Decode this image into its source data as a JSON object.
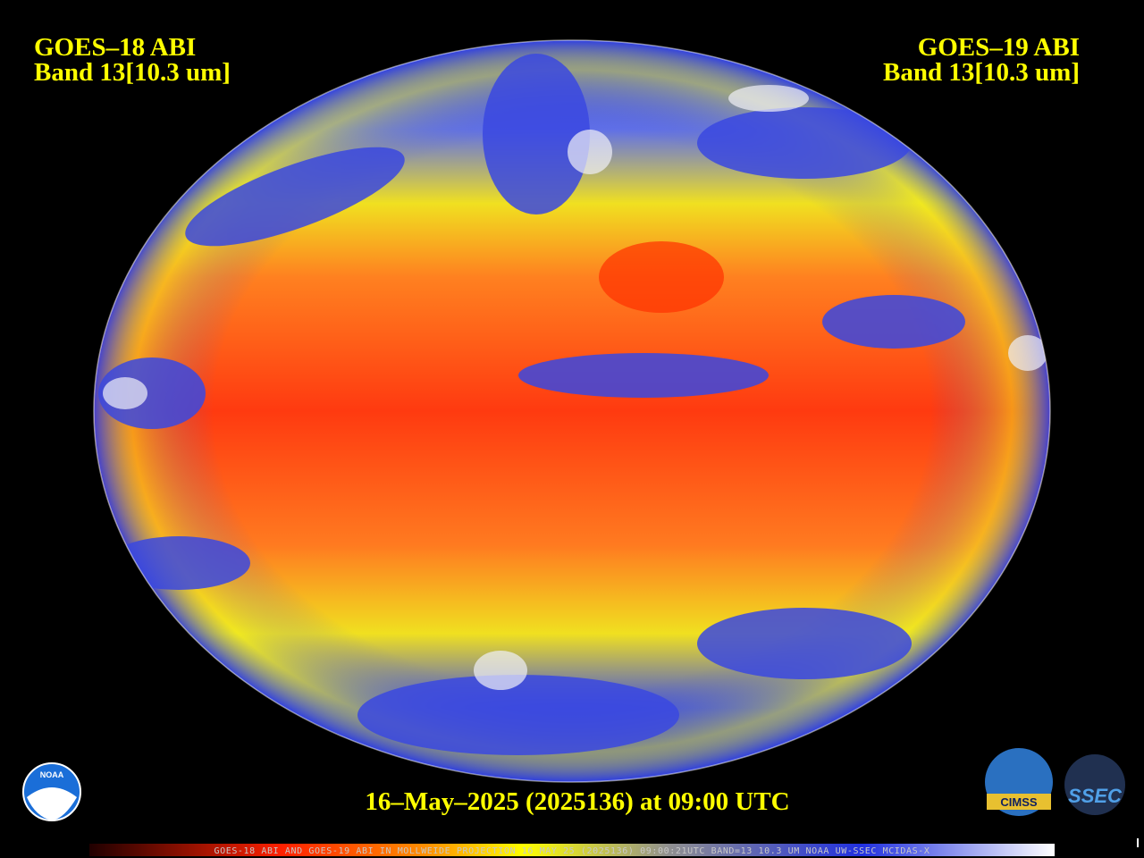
{
  "header": {
    "left": {
      "satellite": "GOES–18 ABI",
      "band": "Band 13[10.3 um]"
    },
    "right": {
      "satellite": "GOES–19 ABI",
      "band": "Band 13[10.3 um]"
    }
  },
  "timestamp": "16–May–2025 (2025136) at 09:00 UTC",
  "footer": "GOES-18 ABI AND GOES-19 ABI IN MOLLWEIDE PROJECTION 16 MAY 25 (2025136) 09:00:21UTC BAND=13 10.3 UM NOAA UW-SSEC MCIDAS-X",
  "logos": {
    "noaa": "NOAA",
    "cimss": "CIMSS",
    "ssec": "SSEC"
  }
}
